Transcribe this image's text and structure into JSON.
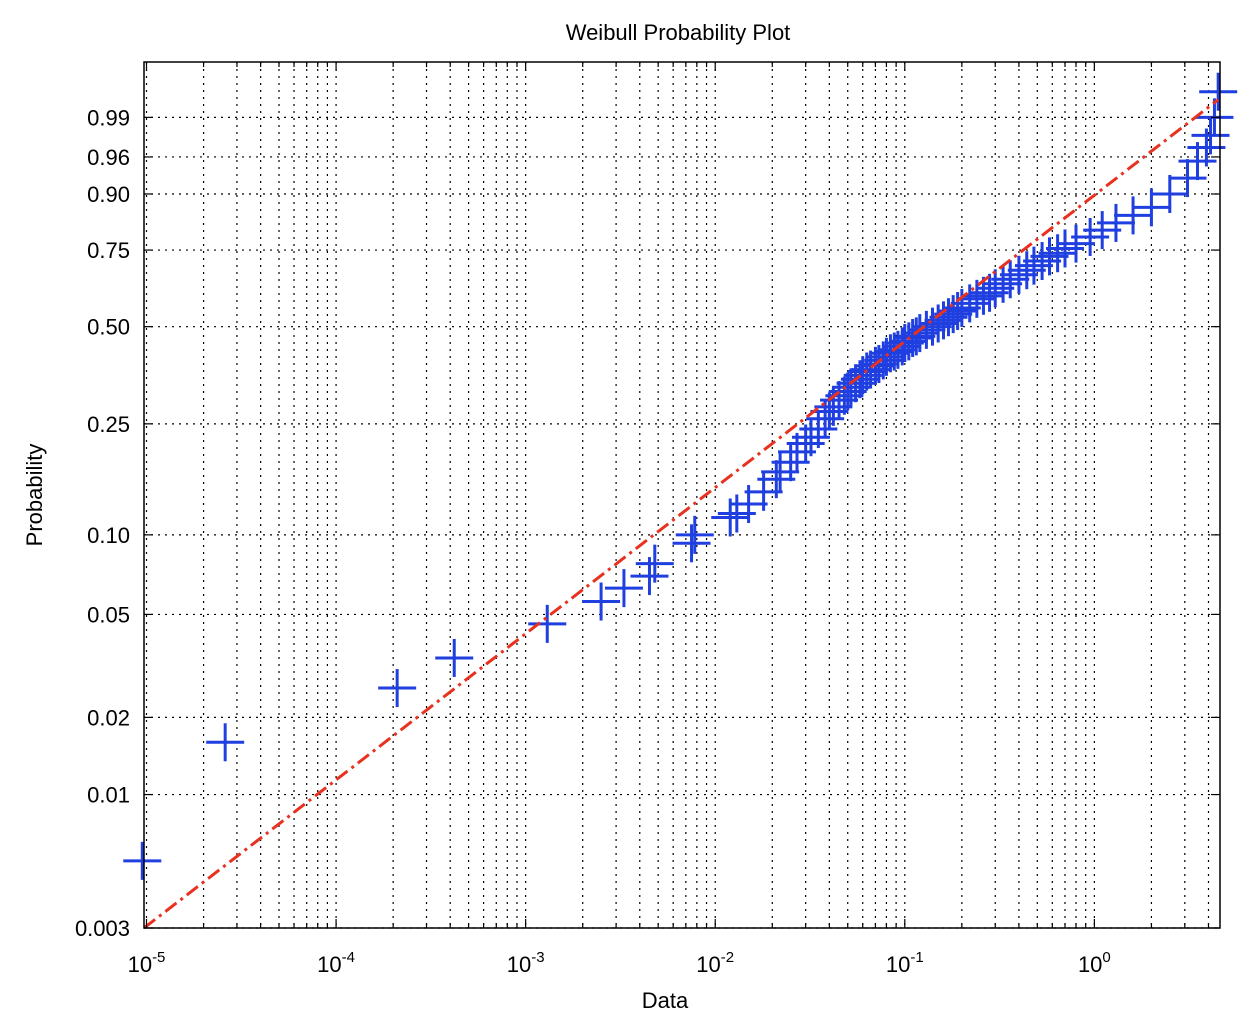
{
  "chart_data": {
    "type": "scatter",
    "title": "Weibull Probability Plot",
    "xlabel": "Data",
    "ylabel": "Probability",
    "xscale": "log",
    "yscale": "weibull",
    "xlim": [
      9.7e-06,
      4.6
    ],
    "ylim": [
      0.003,
      0.9995
    ],
    "grid": true,
    "x_ticks": [
      {
        "value": 1e-05,
        "base": "10",
        "exp": "-5"
      },
      {
        "value": 0.0001,
        "base": "10",
        "exp": "-4"
      },
      {
        "value": 0.001,
        "base": "10",
        "exp": "-3"
      },
      {
        "value": 0.01,
        "base": "10",
        "exp": "-2"
      },
      {
        "value": 0.1,
        "base": "10",
        "exp": "-1"
      },
      {
        "value": 1,
        "base": "10",
        "exp": "0"
      }
    ],
    "y_ticks": [
      {
        "value": 0.003,
        "label": "0.003"
      },
      {
        "value": 0.01,
        "label": "0.01"
      },
      {
        "value": 0.02,
        "label": "0.02"
      },
      {
        "value": 0.05,
        "label": "0.05"
      },
      {
        "value": 0.1,
        "label": "0.10"
      },
      {
        "value": 0.25,
        "label": "0.25"
      },
      {
        "value": 0.5,
        "label": "0.50"
      },
      {
        "value": 0.75,
        "label": "0.75"
      },
      {
        "value": 0.9,
        "label": "0.90"
      },
      {
        "value": 0.96,
        "label": "0.96"
      },
      {
        "value": 0.99,
        "label": "0.99"
      }
    ],
    "series": [
      {
        "marker": "+",
        "color": "#1f3fe0",
        "x": [
          9.5e-06,
          2.6e-05,
          0.00021,
          0.00042,
          0.0013,
          0.0025,
          0.0033,
          0.0045,
          0.0048,
          0.0075,
          0.0078,
          0.012,
          0.013,
          0.015,
          0.018,
          0.021,
          0.022,
          0.025,
          0.027,
          0.03,
          0.032,
          0.035,
          0.038,
          0.04,
          0.042,
          0.045,
          0.048,
          0.05,
          0.052,
          0.055,
          0.058,
          0.06,
          0.063,
          0.066,
          0.07,
          0.073,
          0.077,
          0.08,
          0.084,
          0.088,
          0.092,
          0.097,
          0.1,
          0.105,
          0.11,
          0.115,
          0.12,
          0.13,
          0.14,
          0.15,
          0.16,
          0.17,
          0.18,
          0.19,
          0.2,
          0.22,
          0.24,
          0.26,
          0.28,
          0.3,
          0.33,
          0.36,
          0.4,
          0.44,
          0.48,
          0.53,
          0.58,
          0.64,
          0.7,
          0.8,
          0.95,
          1.1,
          1.3,
          1.6,
          2.0,
          2.5,
          3.1,
          3.5,
          3.9,
          4.1,
          4.3,
          4.5
        ],
        "y": [
          0.0055,
          0.016,
          0.026,
          0.034,
          0.046,
          0.056,
          0.063,
          0.07,
          0.078,
          0.093,
          0.1,
          0.116,
          0.12,
          0.13,
          0.144,
          0.16,
          0.17,
          0.184,
          0.2,
          0.214,
          0.225,
          0.24,
          0.26,
          0.275,
          0.285,
          0.3,
          0.31,
          0.32,
          0.33,
          0.34,
          0.35,
          0.36,
          0.37,
          0.375,
          0.385,
          0.39,
          0.4,
          0.41,
          0.42,
          0.425,
          0.43,
          0.44,
          0.45,
          0.455,
          0.465,
          0.47,
          0.48,
          0.49,
          0.5,
          0.51,
          0.52,
          0.53,
          0.54,
          0.55,
          0.56,
          0.575,
          0.59,
          0.6,
          0.61,
          0.625,
          0.64,
          0.655,
          0.67,
          0.685,
          0.7,
          0.715,
          0.73,
          0.74,
          0.755,
          0.77,
          0.79,
          0.81,
          0.83,
          0.85,
          0.87,
          0.9,
          0.93,
          0.955,
          0.97,
          0.98,
          0.99,
          0.997
        ]
      },
      {
        "line": "dash-dot",
        "color": "#e8311f",
        "x": [
          9.7e-06,
          4.5
        ],
        "y": [
          0.003,
          0.9955
        ]
      }
    ]
  }
}
